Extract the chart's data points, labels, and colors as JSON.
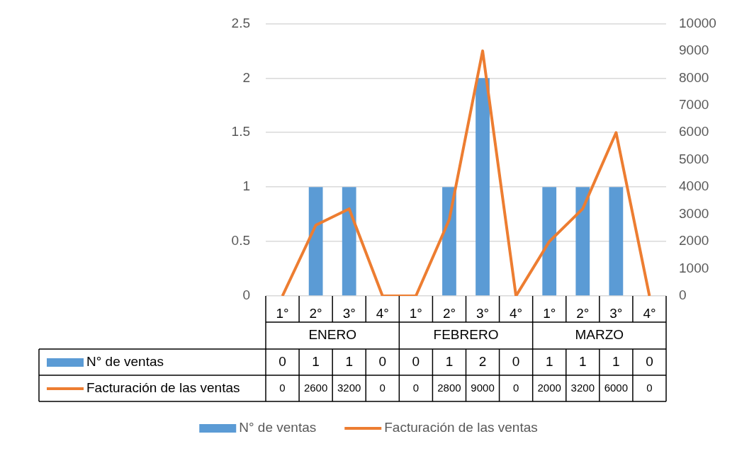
{
  "chart_data": {
    "type": "bar",
    "categories": [
      "1°",
      "2°",
      "3°",
      "4°",
      "1°",
      "2°",
      "3°",
      "4°",
      "1°",
      "2°",
      "3°",
      "4°"
    ],
    "annotations": [
      "ENERO",
      "FEBRERO",
      "MARZO"
    ],
    "series": [
      {
        "name": "N° de ventas",
        "color": "#5b9bd5",
        "values": [
          0,
          1,
          1,
          0,
          0,
          1,
          2,
          0,
          1,
          1,
          1,
          0
        ]
      },
      {
        "name": "Facturación de las ventas",
        "type": "line",
        "axis": "y2",
        "color": "#ed7d31",
        "values": [
          0,
          2600,
          3200,
          0,
          0,
          2800,
          9000,
          0,
          2000,
          3200,
          6000,
          0
        ]
      }
    ],
    "ylim": [
      0,
      2.5
    ],
    "yticks": [
      0,
      0.5,
      1,
      1.5,
      2,
      2.5
    ],
    "y2lim": [
      0,
      10000
    ],
    "y2ticks": [
      0,
      1000,
      2000,
      3000,
      4000,
      5000,
      6000,
      7000,
      8000,
      9000,
      10000
    ],
    "grid": "y",
    "legend": "bottom",
    "data_labels": true,
    "marker": "none"
  }
}
